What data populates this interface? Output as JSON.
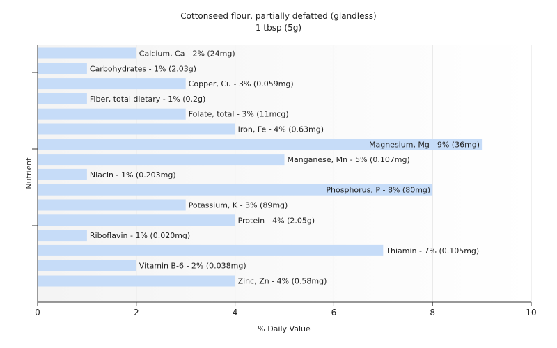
{
  "chart_data": {
    "type": "bar",
    "orientation": "horizontal",
    "title": "Cottonseed flour, partially defatted (glandless)",
    "subtitle": "1 tbsp (5g)",
    "xlabel": "% Daily Value",
    "ylabel": "Nutrient",
    "xlim": [
      0,
      10
    ],
    "xticks": [
      "0",
      "2",
      "4",
      "6",
      "8",
      "10"
    ],
    "grid": "vertical",
    "bar_color": "#c6dcf8",
    "categories": [
      "Calcium, Ca",
      "Carbohydrates",
      "Copper, Cu",
      "Fiber, total dietary",
      "Folate, total",
      "Iron, Fe",
      "Magnesium, Mg",
      "Manganese, Mn",
      "Niacin",
      "Phosphorus, P",
      "Potassium, K",
      "Protein",
      "Riboflavin",
      "Thiamin",
      "Vitamin B-6",
      "Zinc, Zn"
    ],
    "values": [
      2,
      1,
      3,
      1,
      3,
      4,
      9,
      5,
      1,
      8,
      3,
      4,
      1,
      7,
      2,
      4
    ],
    "labels": [
      "Calcium, Ca - 2% (24mg)",
      "Carbohydrates - 1% (2.03g)",
      "Copper, Cu - 3% (0.059mg)",
      "Fiber, total dietary - 1% (0.2g)",
      "Folate, total - 3% (11mcg)",
      "Iron, Fe - 4% (0.63mg)",
      "Magnesium, Mg - 9% (36mg)",
      "Manganese, Mn - 5% (0.107mg)",
      "Niacin - 1% (0.203mg)",
      "Phosphorus, P - 8% (80mg)",
      "Potassium, K - 3% (89mg)",
      "Protein - 4% (2.05g)",
      "Riboflavin - 1% (0.020mg)",
      "Thiamin - 7% (0.105mg)",
      "Vitamin B-6 - 2% (0.038mg)",
      "Zinc, Zn - 4% (0.58mg)"
    ]
  }
}
